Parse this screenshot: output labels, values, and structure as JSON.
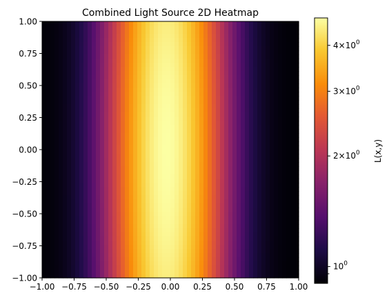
{
  "chart_data": {
    "type": "heatmap",
    "title": "Combined Light Source 2D Heatmap",
    "xlabel": "",
    "ylabel": "",
    "xlim": [
      -1.0,
      1.0
    ],
    "ylim": [
      -1.0,
      1.0
    ],
    "x_ticks": [
      -1.0,
      -0.75,
      -0.5,
      -0.25,
      0.0,
      0.25,
      0.5,
      0.75,
      1.0
    ],
    "x_tick_labels": [
      "−1.00",
      "−0.75",
      "−0.50",
      "−0.25",
      "0.00",
      "0.25",
      "0.50",
      "0.75",
      "1.00"
    ],
    "y_ticks": [
      1.0,
      0.75,
      0.5,
      0.25,
      0.0,
      -0.25,
      -0.5,
      -0.75,
      -1.0
    ],
    "y_tick_labels": [
      "1.00",
      "0.75",
      "0.50",
      "0.25",
      "0.00",
      "−0.25",
      "−0.50",
      "−0.75",
      "−1.00"
    ],
    "colormap": "inferno",
    "colorbar": {
      "label": "L(x,y)",
      "scale": "log",
      "range": [
        0.9,
        4.75
      ],
      "ticks": [
        {
          "value": 4,
          "mantissa": "4",
          "exponent": "0"
        },
        {
          "value": 3,
          "mantissa": "3",
          "exponent": "0"
        },
        {
          "value": 2,
          "mantissa": "2",
          "exponent": "0"
        },
        {
          "value": 1,
          "mantissa": "",
          "exponent": "0"
        }
      ]
    },
    "peak_x": -0.03,
    "peak_value": 4.75,
    "min_value": 0.9,
    "grid": false,
    "legend": "none"
  }
}
